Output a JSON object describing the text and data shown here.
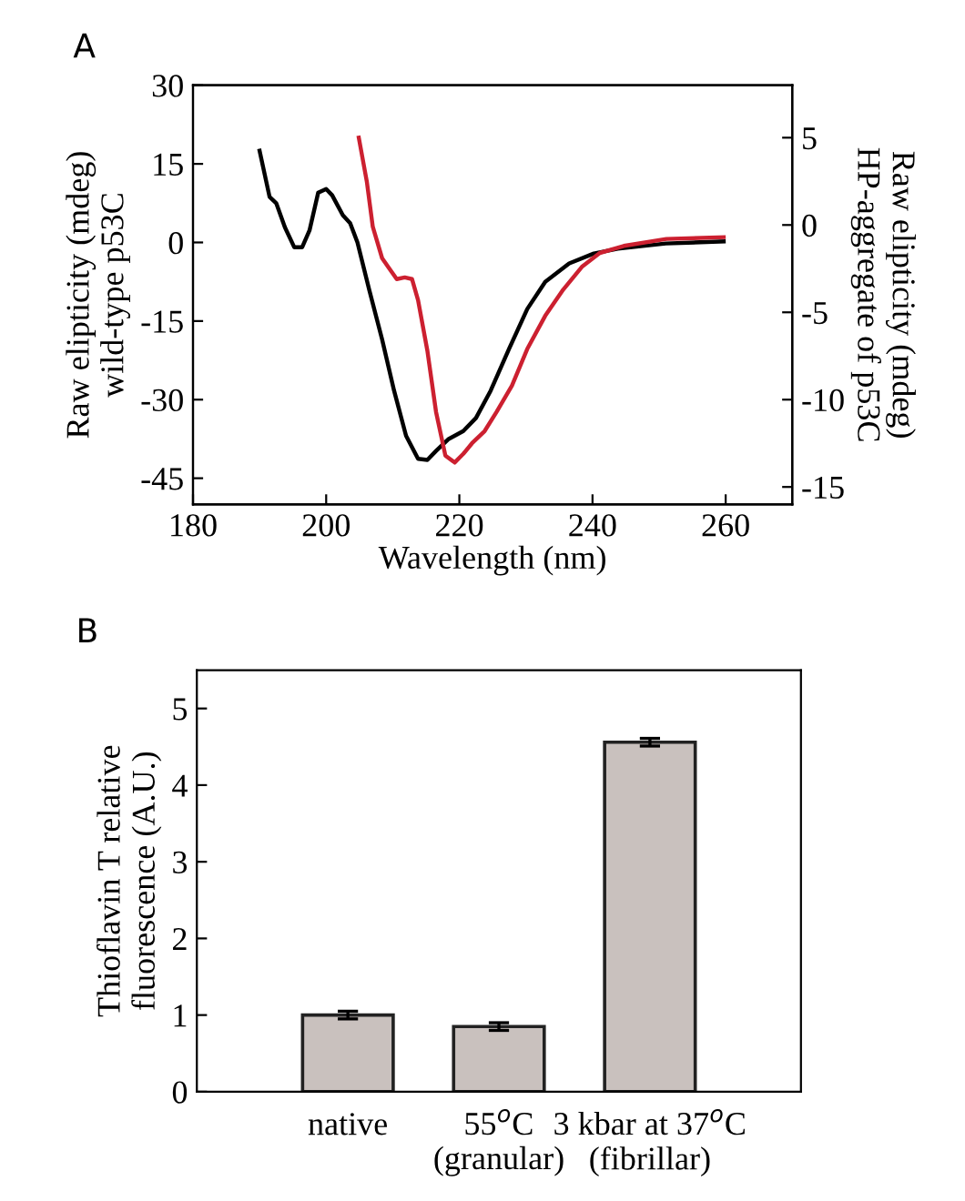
{
  "chart_data": [
    {
      "type": "line",
      "title": "A",
      "xlabel": "Wavelength (nm)",
      "ylabel": "Raw elipticity (mdeg)\nwild-type p53C",
      "y2label": "Raw elipticity (mdeg)\nHP-aggregate of p53C",
      "xlim": [
        180,
        270
      ],
      "xticks": [
        180,
        200,
        220,
        240,
        260
      ],
      "ylim": [
        -50,
        30
      ],
      "yticks": [
        -45,
        -30,
        -15,
        0,
        15,
        30
      ],
      "y2lim": [
        -16,
        8
      ],
      "y2ticks": [
        -15,
        -10,
        -5,
        0,
        5
      ],
      "grid": false,
      "legend": false,
      "marker": "none",
      "line_style": "solid",
      "series": [
        {
          "color": "#000000",
          "x": [
            190,
            191.5,
            192.5,
            193.8,
            195.2,
            196.4,
            197.5,
            198.8,
            200,
            200.9,
            202.5,
            203.6,
            204.7,
            206.5,
            208.4,
            210.2,
            212,
            213.8,
            215.2,
            216.5,
            218.4,
            220.6,
            222.5,
            224.7,
            227.5,
            230.2,
            232.9,
            236.5,
            240.2,
            243.8,
            251,
            259.7
          ],
          "values": [
            17.5,
            8.7,
            7.5,
            2.9,
            -0.9,
            -0.9,
            2.3,
            9.5,
            10.2,
            9,
            5.2,
            3.7,
            0,
            -9.2,
            -18.5,
            -28.3,
            -36.9,
            -41.3,
            -41.5,
            -39.8,
            -37.5,
            -36,
            -33.5,
            -28.3,
            -20.2,
            -12.7,
            -7.5,
            -4,
            -2.1,
            -1.2,
            -0.2,
            0.2
          ]
        },
        {
          "color": "#cc2030",
          "axis": "y2",
          "x": [
            204.9,
            206.1,
            207,
            208.4,
            209.3,
            210.6,
            211.8,
            212.9,
            213.8,
            215.2,
            216.5,
            217.9,
            219.3,
            220.6,
            221.9,
            223.8,
            225.6,
            227.9,
            230.2,
            232.9,
            235.6,
            238.4,
            241.1,
            244.7,
            251.1,
            259.7
          ],
          "values": [
            5,
            2.5,
            -0.1,
            -1.9,
            -2.4,
            -3.1,
            -3,
            -3.1,
            -4.3,
            -7.2,
            -10.7,
            -13.2,
            -13.6,
            -13.1,
            -12.5,
            -11.8,
            -10.7,
            -9.2,
            -7.1,
            -5.2,
            -3.7,
            -2.4,
            -1.6,
            -1.2,
            -0.8,
            -0.7
          ]
        }
      ]
    },
    {
      "type": "bar",
      "title": "B",
      "ylabel": "Thioflavin T relative\nfluorescence (A.U.)",
      "categories": [
        "native",
        "55$^{o}$C\n(granular)",
        "3 kbar at 37$^{o}$C\n(fibrillar)"
      ],
      "values": [
        1.0,
        0.85,
        4.56
      ],
      "errors": [
        0.05,
        0.05,
        0.05
      ],
      "color": "#c9c1be",
      "ylim": [
        0,
        5.5
      ],
      "yticks": [
        0,
        1,
        2,
        3,
        4,
        5
      ],
      "grid": false,
      "legend": false
    }
  ]
}
